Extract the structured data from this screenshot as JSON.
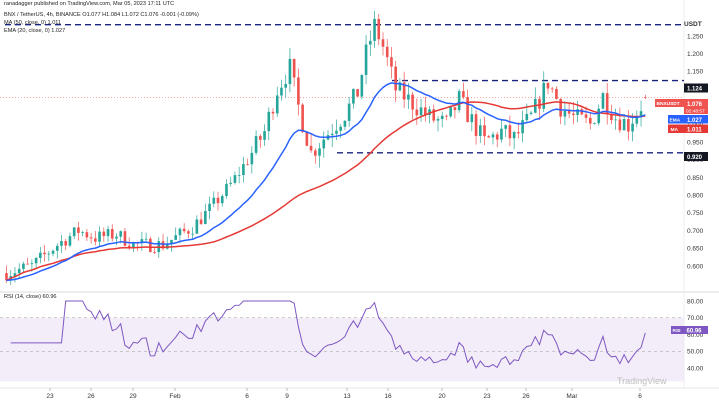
{
  "header": {
    "published": "ranadagger published on TradingView.com, Mar 05, 2023 17:11 UTC",
    "symbol_line": "BNX / TetherUS, 4h, BINANCE O1.077 H1.084 L1.072 C1.076 -0.001 (-0.09%)",
    "ma_line": "MA (50, close, 0) 1.011",
    "ema_line": "EMA (20, close, 0) 1.027",
    "rsi_line": "RSI (14, close) 60.96"
  },
  "currency_label": "USDT",
  "tags": {
    "resistance": "1.124",
    "symbol": "BNXUSDT",
    "price": "1.076",
    "countdown": "02:48:57",
    "ema_name": "EMA",
    "ema_value": "1.027",
    "ma_name": "MA",
    "ma_value": "1.011",
    "support": "0.920",
    "rsi_name": "RSI",
    "rsi_value": "60.96"
  },
  "watermark": "TradingView",
  "colors": {
    "up": "#26a69a",
    "down": "#ef5350",
    "ema20": "#2962ff",
    "ma50": "#e53935",
    "level_lines": "#1a237e",
    "rsi_line": "#7e57c2",
    "rsi_band": "#ede7f6"
  },
  "chart_data": [
    {
      "type": "candlestick",
      "title": "BNX / TetherUS, 4h, BINANCE",
      "ylim": [
        0.55,
        1.3
      ],
      "y_ticks": [
        "1.250",
        "1.200",
        "1.150",
        "1.100",
        "1.050",
        "1.000",
        "0.950",
        "0.900",
        "0.850",
        "0.800",
        "0.750",
        "0.700",
        "0.650",
        "0.600"
      ],
      "x_ticks": [
        "23",
        "26",
        "29",
        "Feb",
        "6",
        "9",
        "13",
        "16",
        "20",
        "23",
        "26",
        "Mar",
        "6"
      ],
      "horizontal_levels": [
        1.282,
        1.124,
        0.92
      ],
      "series": [
        {
          "name": "EMA (20, close, 0)",
          "last": 1.027
        },
        {
          "name": "MA (50, close, 0)",
          "last": 1.011
        }
      ],
      "price_path": [
        [
          0,
          0.58
        ],
        [
          6,
          0.6
        ],
        [
          12,
          0.66
        ],
        [
          17,
          0.7
        ],
        [
          21,
          0.68
        ],
        [
          26,
          0.69
        ],
        [
          30,
          0.66
        ],
        [
          37,
          0.66
        ],
        [
          44,
          0.71
        ],
        [
          48,
          0.76
        ],
        [
          53,
          0.83
        ],
        [
          57,
          0.9
        ],
        [
          61,
          0.98
        ],
        [
          64,
          1.1
        ],
        [
          67,
          1.16
        ],
        [
          69,
          1.05
        ],
        [
          72,
          0.92
        ],
        [
          77,
          0.99
        ],
        [
          80,
          1.03
        ],
        [
          83,
          1.09
        ],
        [
          85,
          1.2
        ],
        [
          87,
          1.28
        ],
        [
          89,
          1.22
        ],
        [
          92,
          1.1
        ],
        [
          96,
          1.06
        ],
        [
          100,
          1.02
        ],
        [
          104,
          1.0
        ],
        [
          107,
          1.07
        ],
        [
          110,
          1.01
        ],
        [
          113,
          0.95
        ],
        [
          117,
          0.98
        ],
        [
          120,
          0.96
        ],
        [
          124,
          1.02
        ],
        [
          128,
          1.12
        ],
        [
          131,
          1.05
        ],
        [
          134,
          1.02
        ],
        [
          138,
          1.0
        ],
        [
          141,
          1.08
        ],
        [
          144,
          1.02
        ],
        [
          147,
          1.0
        ],
        [
          151,
          1.07
        ]
      ]
    },
    {
      "type": "line",
      "title": "RSI (14, close)",
      "ylim": [
        35,
        85
      ],
      "y_ticks": [
        "80.00",
        "70.00",
        "60.00",
        "50.00",
        "40.00"
      ],
      "band": [
        30,
        70
      ],
      "midline": 50,
      "last": 60.96
    }
  ]
}
